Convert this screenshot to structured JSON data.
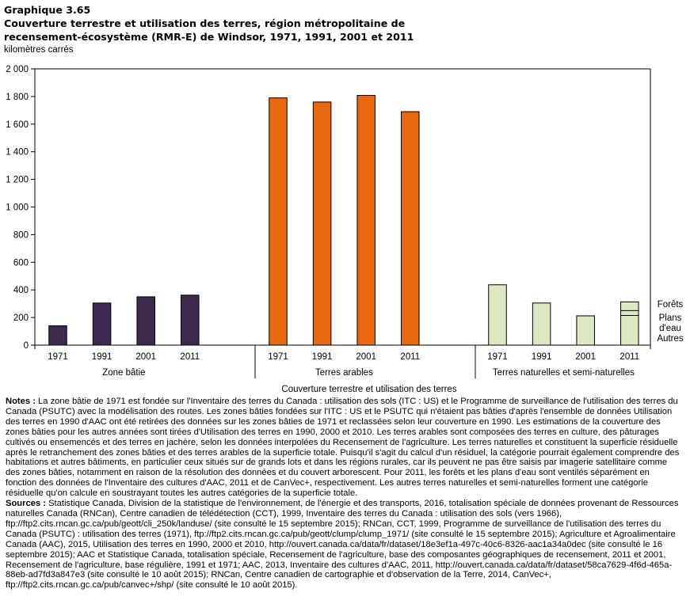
{
  "header": {
    "graph_label": "Graphique  3.65",
    "title_line1": "Couverture terrestre et utilisation des terres, région métropolitaine de",
    "title_line2": "recensement-écosystème (RMR-E) de Windsor, 1971, 1991, 2001 et 2011",
    "unit": "kilomètres carrés"
  },
  "colors": {
    "zone_batie": "#3b2a4e",
    "terres_arables": "#e8690f",
    "naturelles": "#dde8c2",
    "bar_outline": "#000000",
    "grid": "#000000"
  },
  "chart_data": {
    "type": "bar",
    "title": "Couverture terrestre et utilisation des terres, région métropolitaine de recensement-écosystème (RMR-E) de Windsor, 1971, 1991, 2001 et 2011",
    "ylabel": "kilomètres carrés",
    "xlabel": "Couverture terrestre et utilisation des terres",
    "ylim": [
      0,
      2000
    ],
    "yticks": [
      0,
      200,
      400,
      600,
      800,
      1000,
      1200,
      1400,
      1600,
      1800,
      2000
    ],
    "ytick_labels": [
      "0",
      "200",
      "400",
      "600",
      "800",
      "1 000",
      "1 200",
      "1 400",
      "1 600",
      "1 800",
      "2 000"
    ],
    "groups": [
      {
        "name": "Zone bâtie",
        "color_key": "zone_batie",
        "categories": [
          "1971",
          "1991",
          "2001",
          "2011"
        ],
        "values": [
          140,
          305,
          350,
          362
        ]
      },
      {
        "name": "Terres arables",
        "color_key": "terres_arables",
        "categories": [
          "1971",
          "1991",
          "2001",
          "2011"
        ],
        "values": [
          1790,
          1760,
          1808,
          1690
        ]
      },
      {
        "name": "Terres naturelles et semi-naturelles",
        "color_key": "naturelles",
        "categories": [
          "1971",
          "1991",
          "2001",
          "2011"
        ],
        "values": [
          437,
          305,
          212,
          313
        ]
      }
    ],
    "stack_2011_naturelles": [
      {
        "name": "Autres",
        "value": 215
      },
      {
        "name": "Plans d'eau",
        "value": 35
      },
      {
        "name": "Forêts",
        "value": 63
      }
    ],
    "stack_labels": [
      {
        "line1": "Forêts",
        "line2": ""
      },
      {
        "line1": "Plans",
        "line2": "d'eau"
      },
      {
        "line1": "Autres",
        "line2": ""
      }
    ],
    "grid": false,
    "legend": "right of last bar"
  },
  "notes": {
    "notes_label": "Notes :",
    "notes_text": " La zone bâtie de 1971 est fondée sur l'Inventaire des terres du Canada : utilisation des sols (ITC : US) et le Programme de surveillance de l'utilisation des terres du Canada (PSUTC) avec la modélisation des routes. Les zones bâties fondées sur l'ITC : US et le PSUTC qui n'étaient pas bâties d'après l'ensemble de données Utilisation des terres en 1990 d'AAC ont été retirées des données sur les zones bâties de 1971 et reclassées selon leur couverture en 1990. Les estimations de la couverture des zones bâties pour les autres années sont tirées d'Utilisation des terres en 1990, 2000 et 2010. Les terres arables sont composées des terres en culture, des pâturages cultivés ou ensemencés et des terres en jachère, selon les données interpolées du Recensement de l'agriculture. Les terres naturelles et constituent la superficie résiduelle après le retranchement des zones bâties et des terres arables de la superficie totale. Puisqu'il s'agit du calcul d'un résiduel, la catégorie pourrait également comprendre des habitations et autres bâtiments, en particulier ceux situés sur de grands lots et dans les régions rurales, car ils peuvent ne pas être saisis par imagerie satellitaire comme des zones bâties, notamment en raison de la résolution des données et du couvert arborescent. Pour 2011, les forêts et les plans d'eau sont ventilés séparément en fonction des données de l'Inventaire des cultures d'AAC, 2011 et de CanVec+, respectivement. Les autres terres naturelles et semi-naturelles forment une catégorie résiduelle qu'on calcule en soustrayant toutes les autres catégories de la superficie totale.",
    "sources_label": "Sources :",
    "sources_text": " Statistique Canada, Division de la statistique de l'environnement, de l'énergie et des transports, 2016, totalisation spéciale de données provenant de Ressources naturelles Canada (RNCan), Centre canadien de télédétection (CCT), 1999, Inventaire des terres du Canada : utilisation des sols (vers 1966), ftp://ftp2.cits.rncan.gc.ca/pub/geott/cli_250k/landuse/ (site consulté le 15 septembre 2015); RNCan, CCT, 1999, Programme de surveillance de l'utilisation des terres du Canada (PSUTC) : utilisation des terres (1971), ftp://ftp2.cits.rncan.gc.ca/pub/geott/clump/clump_1971/ (site consulté le 15 septembre 2015); Agriculture et Agroalimentaire Canada (AAC), 2015, Utilisation des terres en 1990, 2000 et 2010, http://ouvert.canada.ca/data/fr/dataset/18e3ef1a-497c-40c6-8326-aac1a34a0dec (site consulté le 16 septembre 2015); AAC et Statistique Canada, totalisation spéciale, Recensement de l'agriculture, base des composantes géographiques de recensement, 2011 et 2001, Recensement de l'agriculture, base régulière, 1991 et 1971; AAC, 2013, Inventaire des cultures d'AAC, 2011, http://ouvert.canada.ca/data/fr/dataset/58ca7629-4f6d-465a-88eb-ad7fd3a847e3 (site consulté le 10 août 2015); RNCan, Centre canadien de cartographie et d'observation de la Terre, 2014, CanVec+, ftp://ftp2.cits.rncan.gc.ca/pub/canvec+/shp/ (site consulté le 10 août 2015)."
  }
}
